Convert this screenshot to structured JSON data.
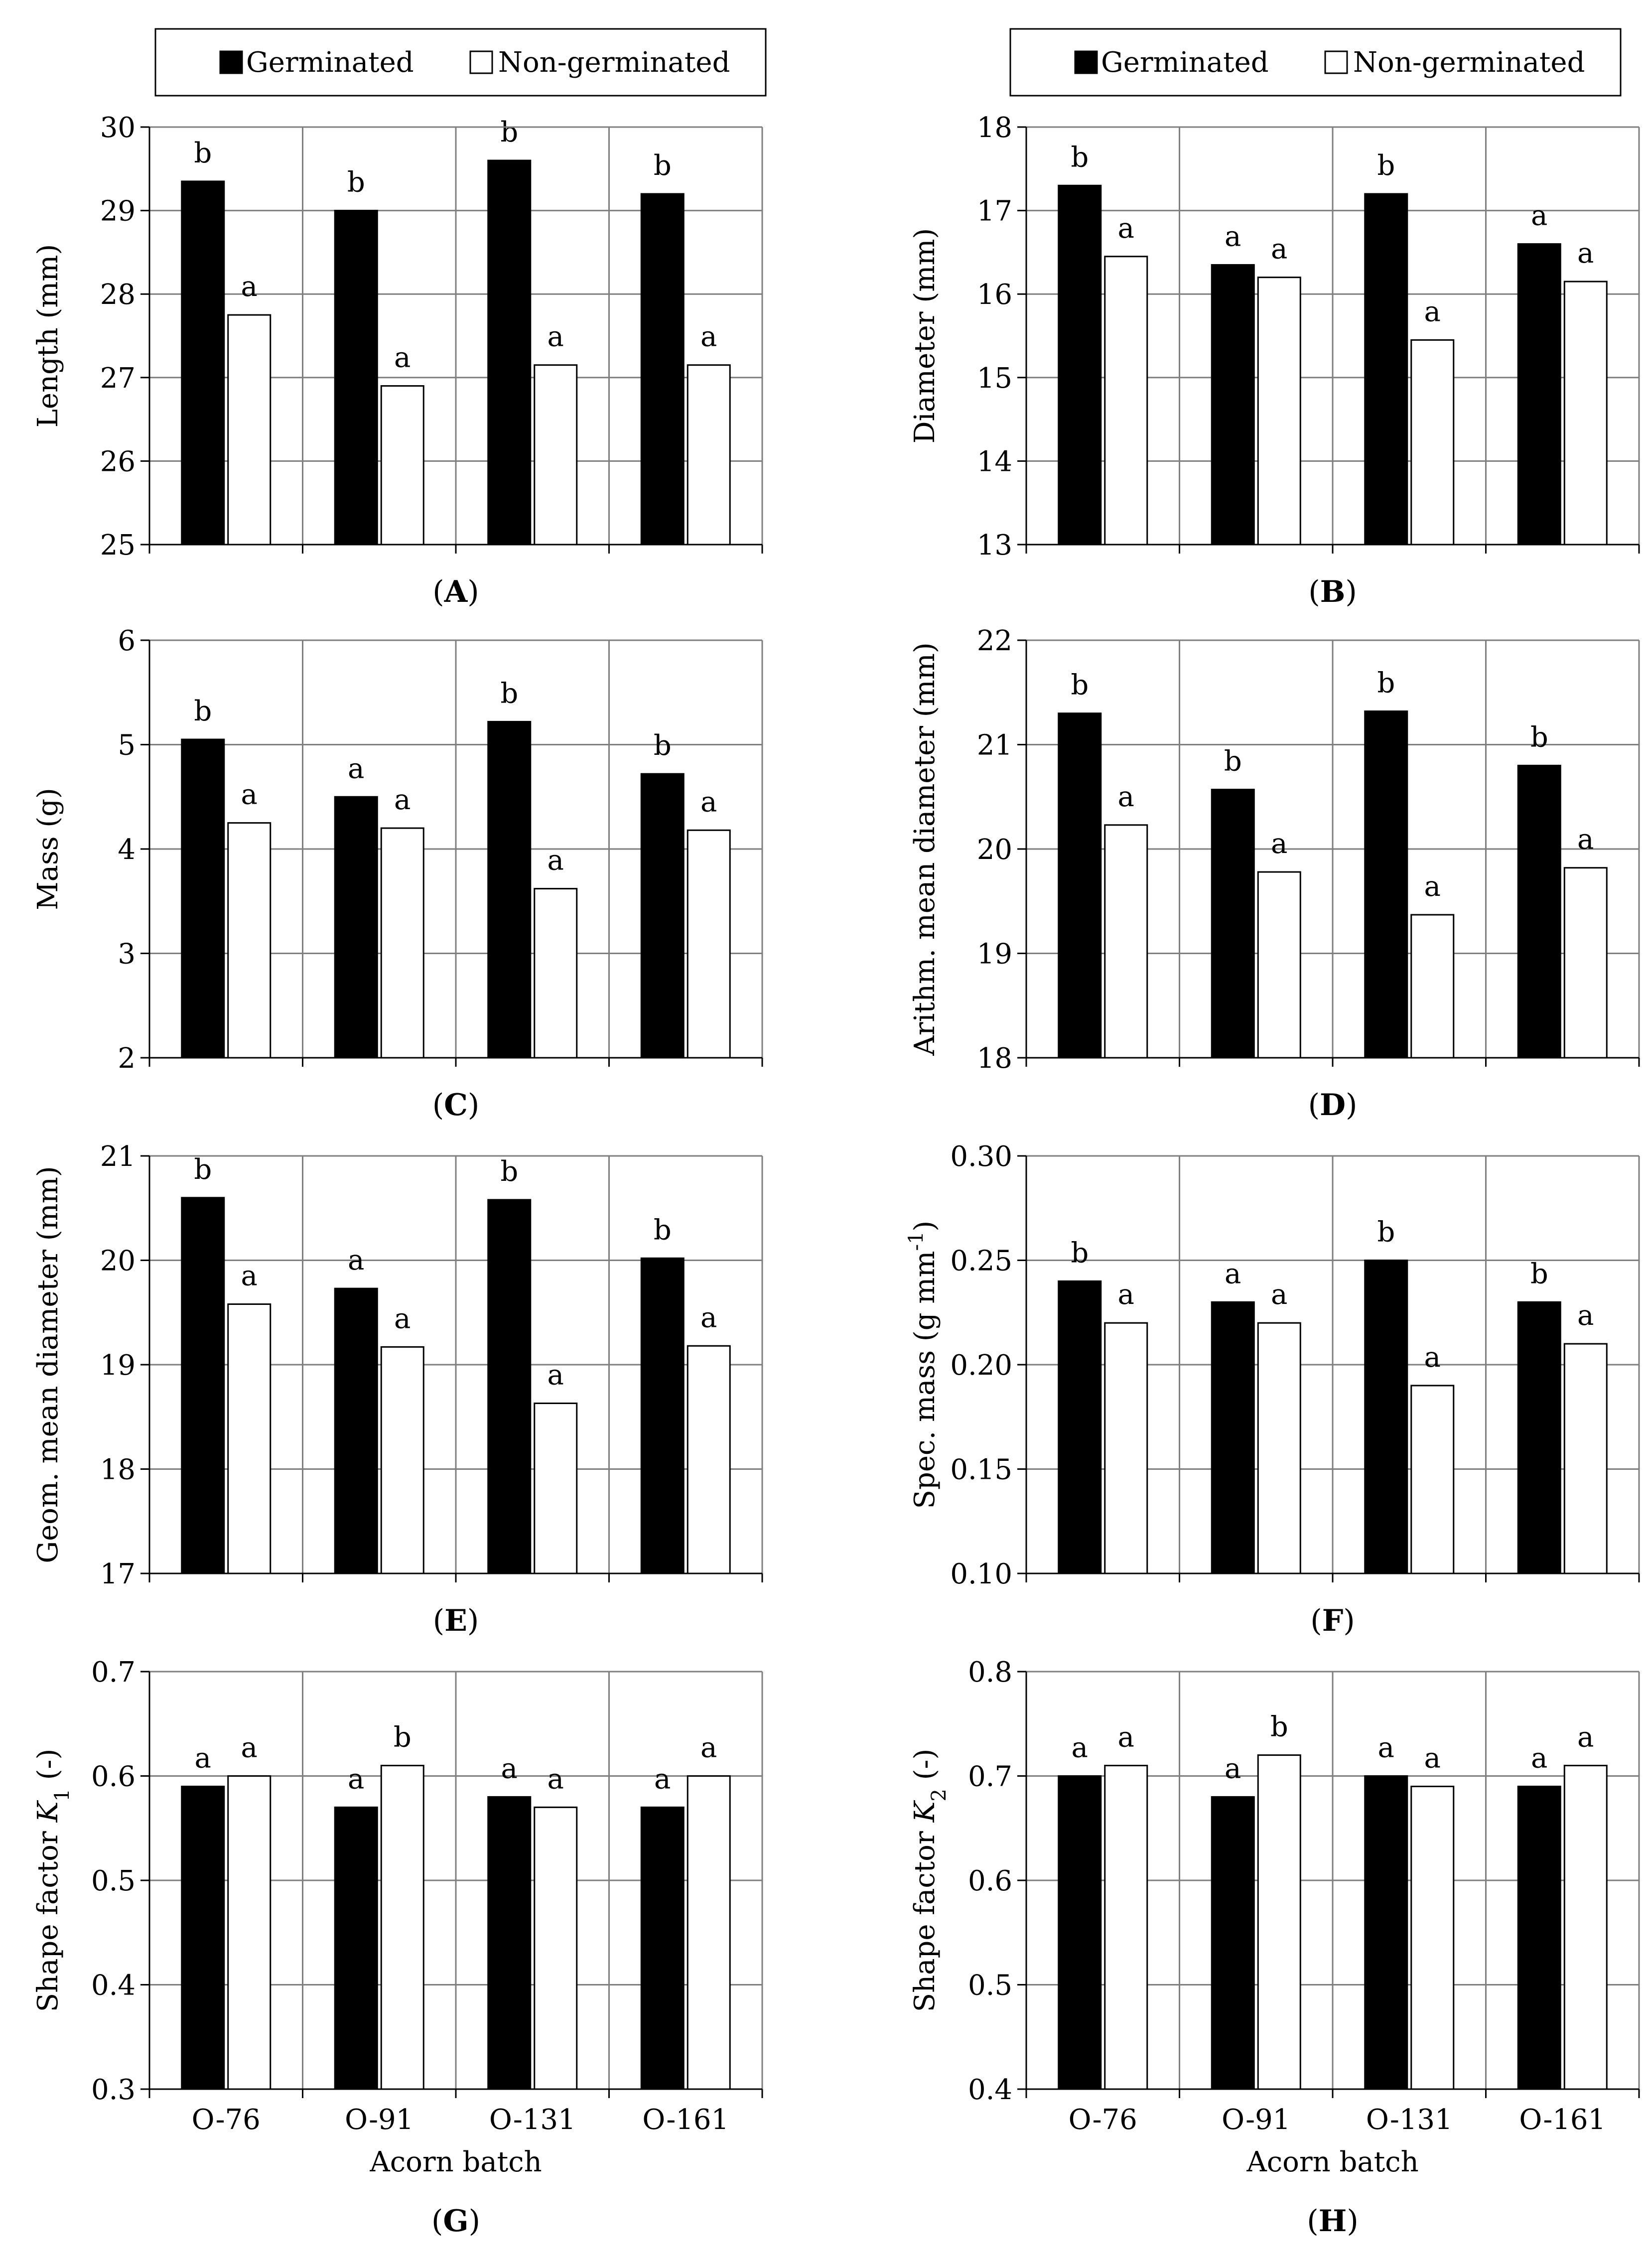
{
  "figure": {
    "legend": {
      "germinated": "Germinated",
      "non_germinated": "Non-germinated"
    },
    "xlabel": "Acorn batch",
    "categories": [
      "O-76",
      "O-91",
      "O-131",
      "O-161"
    ],
    "colors": {
      "germinated": "#000000",
      "non_germinated": "#ffffff",
      "grid": "#7f7f7f"
    }
  },
  "chart_data": [
    {
      "panel": "A",
      "type": "bar",
      "ylabel": "Length (mm)",
      "ylim": [
        25,
        30
      ],
      "ytick_step": 1,
      "ytick_decimals": 0,
      "categories": [
        "O-76",
        "O-91",
        "O-131",
        "O-161"
      ],
      "series": [
        {
          "name": "Germinated",
          "values": [
            29.35,
            29.0,
            29.6,
            29.2
          ],
          "labels": [
            "b",
            "b",
            "b",
            "b"
          ]
        },
        {
          "name": "Non-germinated",
          "values": [
            27.75,
            26.9,
            27.15,
            27.15
          ],
          "labels": [
            "a",
            "a",
            "a",
            "a"
          ]
        }
      ]
    },
    {
      "panel": "B",
      "type": "bar",
      "ylabel": "Diameter (mm)",
      "ylim": [
        13,
        18
      ],
      "ytick_step": 1,
      "ytick_decimals": 0,
      "categories": [
        "O-76",
        "O-91",
        "O-131",
        "O-161"
      ],
      "series": [
        {
          "name": "Germinated",
          "values": [
            17.3,
            16.35,
            17.2,
            16.6
          ],
          "labels": [
            "b",
            "a",
            "b",
            "a"
          ]
        },
        {
          "name": "Non-germinated",
          "values": [
            16.45,
            16.2,
            15.45,
            16.15
          ],
          "labels": [
            "a",
            "a",
            "a",
            "a"
          ]
        }
      ]
    },
    {
      "panel": "C",
      "type": "bar",
      "ylabel": "Mass (g)",
      "ylim": [
        2,
        6
      ],
      "ytick_step": 1,
      "ytick_decimals": 0,
      "categories": [
        "O-76",
        "O-91",
        "O-131",
        "O-161"
      ],
      "series": [
        {
          "name": "Germinated",
          "values": [
            5.05,
            4.5,
            5.22,
            4.72
          ],
          "labels": [
            "b",
            "a",
            "b",
            "b"
          ]
        },
        {
          "name": "Non-germinated",
          "values": [
            4.25,
            4.2,
            3.62,
            4.18
          ],
          "labels": [
            "a",
            "a",
            "a",
            "a"
          ]
        }
      ]
    },
    {
      "panel": "D",
      "type": "bar",
      "ylabel": "Arithm. mean diameter (mm)",
      "ylim": [
        18,
        22
      ],
      "ytick_step": 1,
      "ytick_decimals": 0,
      "categories": [
        "O-76",
        "O-91",
        "O-131",
        "O-161"
      ],
      "series": [
        {
          "name": "Germinated",
          "values": [
            21.3,
            20.57,
            21.32,
            20.8
          ],
          "labels": [
            "b",
            "b",
            "b",
            "b"
          ]
        },
        {
          "name": "Non-germinated",
          "values": [
            20.23,
            19.78,
            19.37,
            19.82
          ],
          "labels": [
            "a",
            "a",
            "a",
            "a"
          ]
        }
      ]
    },
    {
      "panel": "E",
      "type": "bar",
      "ylabel": "Geom. mean diameter (mm)",
      "ylim": [
        17,
        21
      ],
      "ytick_step": 1,
      "ytick_decimals": 0,
      "categories": [
        "O-76",
        "O-91",
        "O-131",
        "O-161"
      ],
      "series": [
        {
          "name": "Germinated",
          "values": [
            20.6,
            19.73,
            20.58,
            20.02
          ],
          "labels": [
            "b",
            "a",
            "b",
            "b"
          ]
        },
        {
          "name": "Non-germinated",
          "values": [
            19.58,
            19.17,
            18.63,
            19.18
          ],
          "labels": [
            "a",
            "a",
            "a",
            "a"
          ]
        }
      ]
    },
    {
      "panel": "F",
      "type": "bar",
      "ylabel": "Spec. mass (g mm",
      "ylabel_sup": "-1",
      "ylabel_end": ")",
      "ylim": [
        0.1,
        0.3
      ],
      "ytick_step": 0.05,
      "ytick_decimals": 2,
      "categories": [
        "O-76",
        "O-91",
        "O-131",
        "O-161"
      ],
      "series": [
        {
          "name": "Germinated",
          "values": [
            0.24,
            0.23,
            0.25,
            0.23
          ],
          "labels": [
            "b",
            "a",
            "b",
            "b"
          ]
        },
        {
          "name": "Non-germinated",
          "values": [
            0.22,
            0.22,
            0.19,
            0.21
          ],
          "labels": [
            "a",
            "a",
            "a",
            "a"
          ]
        }
      ]
    },
    {
      "panel": "G",
      "type": "bar",
      "ylabel": "Shape factor ",
      "ylabel_italic": "K",
      "ylabel_sub": "1",
      "ylabel_end": " (-)",
      "ylim": [
        0.3,
        0.7
      ],
      "ytick_step": 0.1,
      "ytick_decimals": 1,
      "categories": [
        "O-76",
        "O-91",
        "O-131",
        "O-161"
      ],
      "series": [
        {
          "name": "Germinated",
          "values": [
            0.59,
            0.57,
            0.58,
            0.57
          ],
          "labels": [
            "a",
            "a",
            "a",
            "a"
          ]
        },
        {
          "name": "Non-germinated",
          "values": [
            0.6,
            0.61,
            0.57,
            0.6
          ],
          "labels": [
            "a",
            "b",
            "a",
            "a"
          ]
        }
      ]
    },
    {
      "panel": "H",
      "type": "bar",
      "ylabel": "Shape factor ",
      "ylabel_italic": "K",
      "ylabel_sub": "2",
      "ylabel_end": " (-)",
      "ylim": [
        0.4,
        0.8
      ],
      "ytick_step": 0.1,
      "ytick_decimals": 1,
      "categories": [
        "O-76",
        "O-91",
        "O-131",
        "O-161"
      ],
      "series": [
        {
          "name": "Germinated",
          "values": [
            0.7,
            0.68,
            0.7,
            0.69
          ],
          "labels": [
            "a",
            "a",
            "a",
            "a"
          ]
        },
        {
          "name": "Non-germinated",
          "values": [
            0.71,
            0.72,
            0.69,
            0.71
          ],
          "labels": [
            "a",
            "b",
            "a",
            "a"
          ]
        }
      ]
    }
  ]
}
